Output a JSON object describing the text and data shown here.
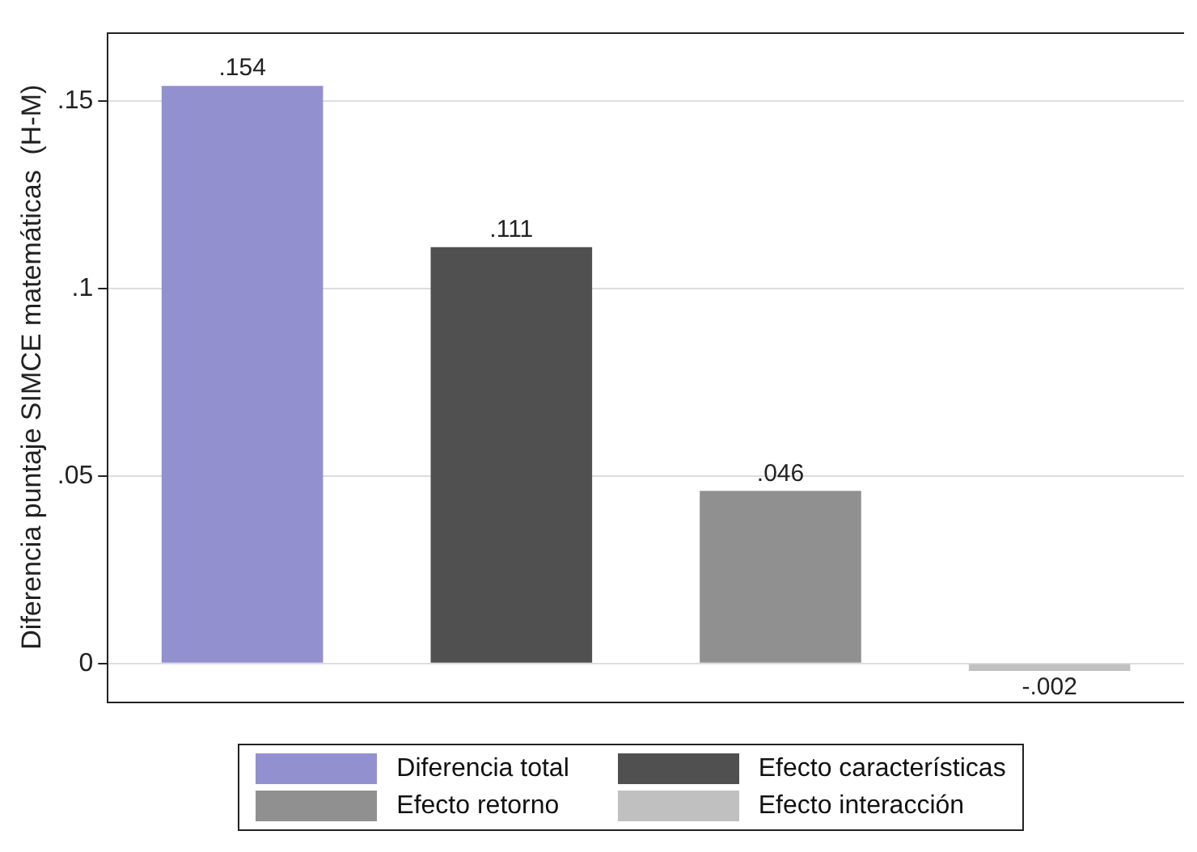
{
  "chart_data": {
    "type": "bar",
    "ylabel": "Diferencia puntaje SIMCE matemáticas  (H-M)",
    "categories": [
      null,
      null,
      null,
      null
    ],
    "series": [
      {
        "name": "Diferencia total",
        "color": "#9390d0",
        "values": [
          0.154,
          null,
          null,
          null
        ],
        "value_labels": [
          ".154",
          null,
          null,
          null
        ]
      },
      {
        "name": "Efecto características",
        "color": "#505050",
        "values": [
          null,
          0.111,
          null,
          null
        ],
        "value_labels": [
          null,
          ".111",
          null,
          null
        ]
      },
      {
        "name": "Efecto retorno",
        "color": "#909090",
        "values": [
          null,
          null,
          0.046,
          null
        ],
        "value_labels": [
          null,
          null,
          ".046",
          null
        ]
      },
      {
        "name": "Efecto interacción",
        "color": "#c0c0c0",
        "values": [
          null,
          null,
          null,
          -0.002
        ],
        "value_labels": [
          null,
          null,
          null,
          "-.002"
        ]
      }
    ],
    "ylim": [
      -0.01,
      0.168
    ],
    "yticks": [
      {
        "value": 0,
        "label": "0"
      },
      {
        "value": 0.05,
        "label": ".05"
      },
      {
        "value": 0.1,
        "label": ".1"
      },
      {
        "value": 0.15,
        "label": ".15"
      }
    ],
    "grid": "y",
    "legend": "bottom"
  }
}
